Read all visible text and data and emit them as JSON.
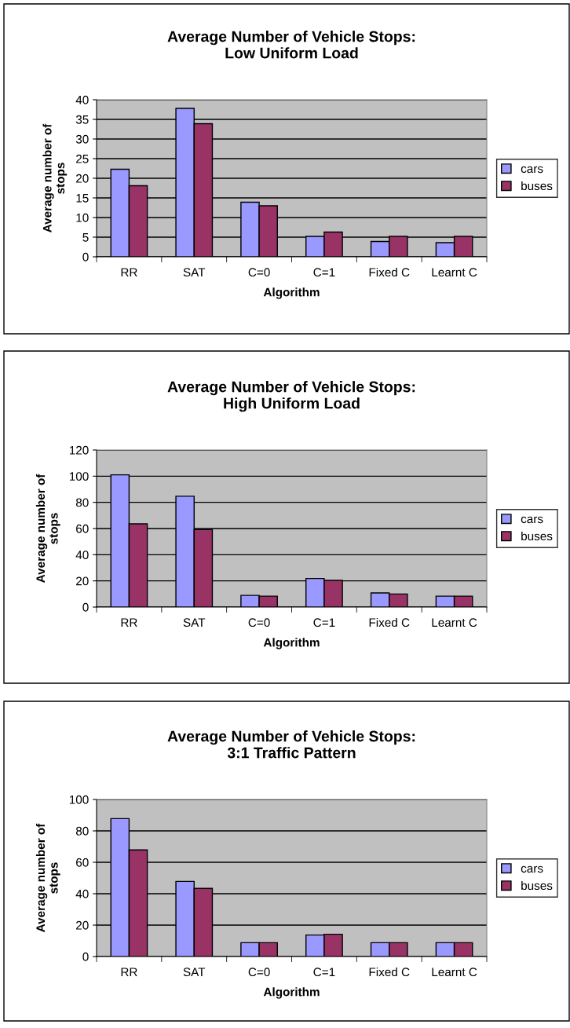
{
  "chart_data": [
    {
      "type": "bar",
      "title": "Average Number of Vehicle Stops:\nLow Uniform Load",
      "xlabel": "Algorithm",
      "ylabel": "Average number of\nstops",
      "categories": [
        "RR",
        "SAT",
        "C=0",
        "C=1",
        "Fixed C",
        "Learnt C"
      ],
      "series": [
        {
          "name": "cars",
          "color": "#9999ff",
          "values": [
            22.3,
            37.8,
            13.9,
            5.2,
            3.9,
            3.6
          ]
        },
        {
          "name": "buses",
          "color": "#993366",
          "values": [
            18.1,
            33.9,
            13.0,
            6.3,
            5.2,
            5.2
          ]
        }
      ],
      "ylim": [
        0,
        40
      ],
      "yticks": [
        0,
        5,
        10,
        15,
        20,
        25,
        30,
        35,
        40
      ],
      "grid": "y",
      "legend": "right"
    },
    {
      "type": "bar",
      "title": "Average Number of Vehicle Stops:\nHigh Uniform Load",
      "xlabel": "Algorithm",
      "ylabel": "Average number of\nstops",
      "categories": [
        "RR",
        "SAT",
        "C=0",
        "C=1",
        "Fixed C",
        "Learnt C"
      ],
      "series": [
        {
          "name": "cars",
          "color": "#9999ff",
          "values": [
            101,
            84.7,
            8.9,
            21.8,
            10.8,
            8.3
          ]
        },
        {
          "name": "buses",
          "color": "#993366",
          "values": [
            63.6,
            59.2,
            8.3,
            20.4,
            10.0,
            8.3
          ]
        }
      ],
      "ylim": [
        0,
        120
      ],
      "yticks": [
        0,
        20,
        40,
        60,
        80,
        100,
        120
      ],
      "grid": "y",
      "legend": "right"
    },
    {
      "type": "bar",
      "title": "Average Number of Vehicle Stops:\n3:1 Traffic Pattern",
      "xlabel": "Algorithm",
      "ylabel": "Average number of\nstops",
      "categories": [
        "RR",
        "SAT",
        "C=0",
        "C=1",
        "Fixed C",
        "Learnt C"
      ],
      "series": [
        {
          "name": "cars",
          "color": "#9999ff",
          "values": [
            87.8,
            47.8,
            8.8,
            13.7,
            8.8,
            8.8
          ]
        },
        {
          "name": "buses",
          "color": "#993366",
          "values": [
            67.9,
            43.4,
            8.8,
            14.2,
            8.8,
            8.8
          ]
        }
      ],
      "ylim": [
        0,
        100
      ],
      "yticks": [
        0,
        20,
        40,
        60,
        80,
        100
      ],
      "grid": "y",
      "legend": "right"
    }
  ]
}
